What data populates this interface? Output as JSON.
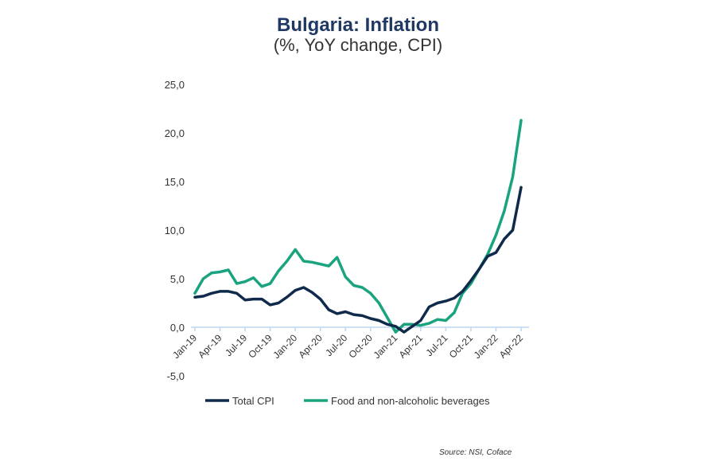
{
  "chart_data": {
    "type": "line",
    "title": "Bulgaria: Inflation",
    "subtitle": "(%, YoY change, CPI)",
    "xlabel": "",
    "ylabel": "",
    "ylim": [
      -5,
      25
    ],
    "yticks": [
      "-5,0",
      "0,0",
      "5,0",
      "10,0",
      "15,0",
      "20,0",
      "25,0"
    ],
    "ytick_values": [
      -5,
      0,
      5,
      10,
      15,
      20,
      25
    ],
    "xtick_labels": [
      "Jan-19",
      "Apr-19",
      "Jul-19",
      "Oct-19",
      "Jan-20",
      "Apr-20",
      "Jul-20",
      "Oct-20",
      "Jan-21",
      "Apr-21",
      "Jul-21",
      "Oct-21",
      "Jan-22",
      "Apr-22"
    ],
    "x_start": "Jan-19",
    "x_end": "Apr-22",
    "frequency": "monthly",
    "grid": false,
    "legend_position": "bottom",
    "series": [
      {
        "name": "Total CPI",
        "color": "#0f2a4a",
        "values": [
          3.1,
          3.2,
          3.5,
          3.7,
          3.7,
          3.5,
          2.8,
          2.9,
          2.9,
          2.3,
          2.5,
          3.1,
          3.8,
          4.1,
          3.6,
          2.9,
          1.8,
          1.4,
          1.6,
          1.3,
          1.2,
          0.9,
          0.7,
          0.3,
          0.1,
          -0.5,
          0.1,
          0.7,
          2.1,
          2.5,
          2.7,
          3.0,
          3.7,
          4.8,
          6.0,
          7.3,
          7.7,
          9.1,
          10.0,
          14.4
        ]
      },
      {
        "name": "Food and non-alcoholic beverages",
        "color": "#1aa37f",
        "values": [
          3.5,
          5.0,
          5.6,
          5.7,
          5.9,
          4.5,
          4.7,
          5.1,
          4.2,
          4.5,
          5.8,
          6.8,
          8.0,
          6.8,
          6.7,
          6.5,
          6.3,
          7.2,
          5.2,
          4.3,
          4.1,
          3.5,
          2.5,
          1.0,
          -0.5,
          0.3,
          0.3,
          0.2,
          0.4,
          0.8,
          0.7,
          1.5,
          3.5,
          4.5,
          6.0,
          7.5,
          9.5,
          12.0,
          15.5,
          21.3
        ]
      }
    ],
    "source": "Source: NSI, Coface"
  }
}
